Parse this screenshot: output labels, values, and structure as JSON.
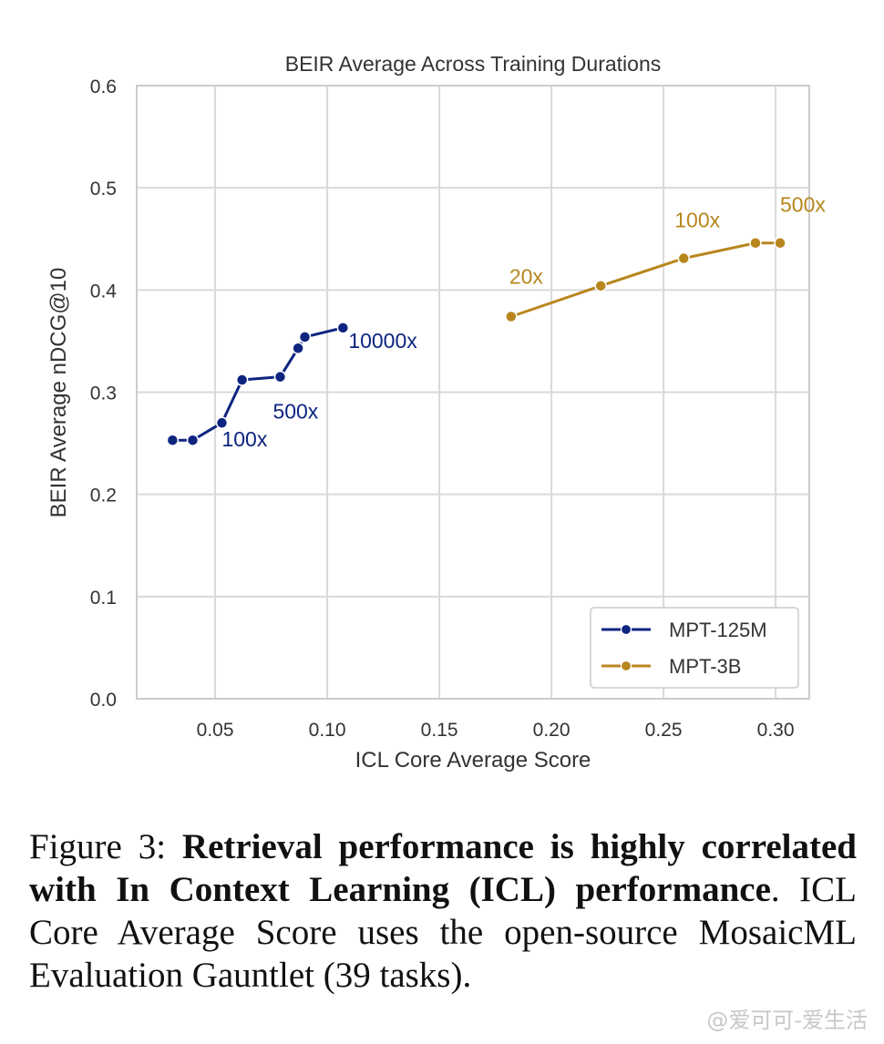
{
  "chart_data": {
    "type": "line",
    "title": "BEIR Average Across Training Durations",
    "xlabel": "ICL Core Average Score",
    "ylabel": "BEIR Average nDCG@10",
    "xlim": [
      0.015,
      0.315
    ],
    "ylim": [
      0.0,
      0.6
    ],
    "xticks": [
      0.05,
      0.1,
      0.15,
      0.2,
      0.25,
      0.3
    ],
    "xtick_labels": [
      "0.05",
      "0.10",
      "0.15",
      "0.20",
      "0.25",
      "0.30"
    ],
    "yticks": [
      0.0,
      0.1,
      0.2,
      0.3,
      0.4,
      0.5,
      0.6
    ],
    "ytick_labels": [
      "0.0",
      "0.1",
      "0.2",
      "0.3",
      "0.4",
      "0.5",
      "0.6"
    ],
    "grid": true,
    "legend_position": "bottom-right",
    "series": [
      {
        "name": "MPT-125M",
        "color": "#0d2480",
        "x": [
          0.031,
          0.04,
          0.053,
          0.062,
          0.079,
          0.087,
          0.09,
          0.107
        ],
        "y": [
          0.253,
          0.253,
          0.27,
          0.312,
          0.315,
          0.343,
          0.354,
          0.363
        ],
        "annotations": [
          {
            "text": "100x",
            "x": 0.053,
            "y": 0.27
          },
          {
            "text": "500x",
            "x": 0.079,
            "y": 0.315
          },
          {
            "text": "10000x",
            "x": 0.107,
            "y": 0.363
          }
        ]
      },
      {
        "name": "MPT-3B",
        "color": "#b8861e",
        "x": [
          0.182,
          0.222,
          0.259,
          0.291,
          0.302
        ],
        "y": [
          0.374,
          0.404,
          0.431,
          0.446,
          0.446
        ],
        "annotations": [
          {
            "text": "20x",
            "x": 0.182,
            "y": 0.374
          },
          {
            "text": "100x",
            "x": 0.259,
            "y": 0.431
          },
          {
            "text": "500x",
            "x": 0.302,
            "y": 0.446
          }
        ]
      }
    ]
  },
  "caption": {
    "prefix": "Figure 3: ",
    "bold": "Retrieval performance is highly correlated with In Context Learning (ICL) performance",
    "rest": ". ICL Core Average Score uses the open-source MosaicML Evaluation Gauntlet (39 tasks)."
  },
  "watermark": "@爱可可-爱生活"
}
